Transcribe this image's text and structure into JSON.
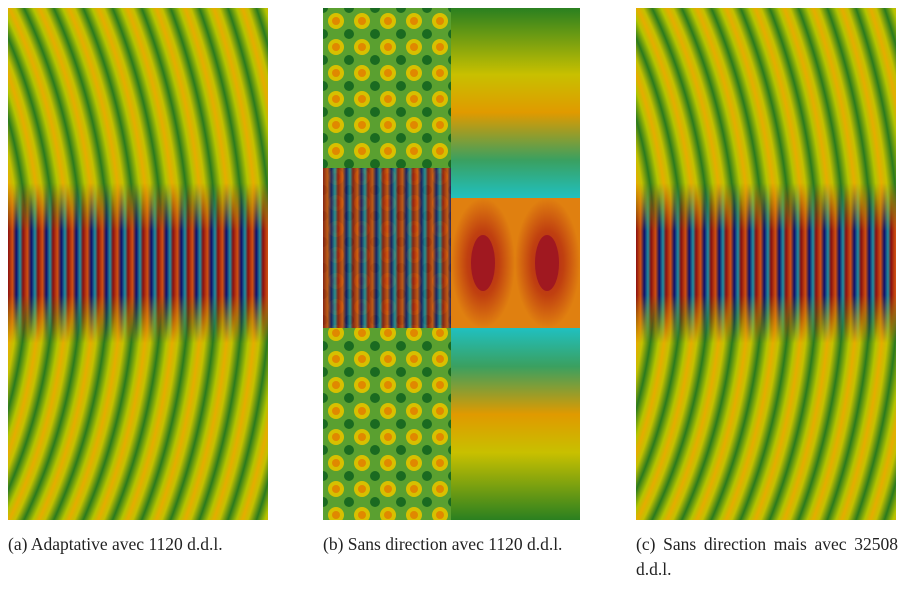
{
  "figures": [
    {
      "label": "(a)",
      "caption": "Adaptative avec 1120 d.d.l."
    },
    {
      "label": "(b)",
      "caption": "Sans direction avec 1120 d.d.l."
    },
    {
      "label": "(c)",
      "caption": "Sans direction mais avec 32508 d.d.l."
    }
  ]
}
